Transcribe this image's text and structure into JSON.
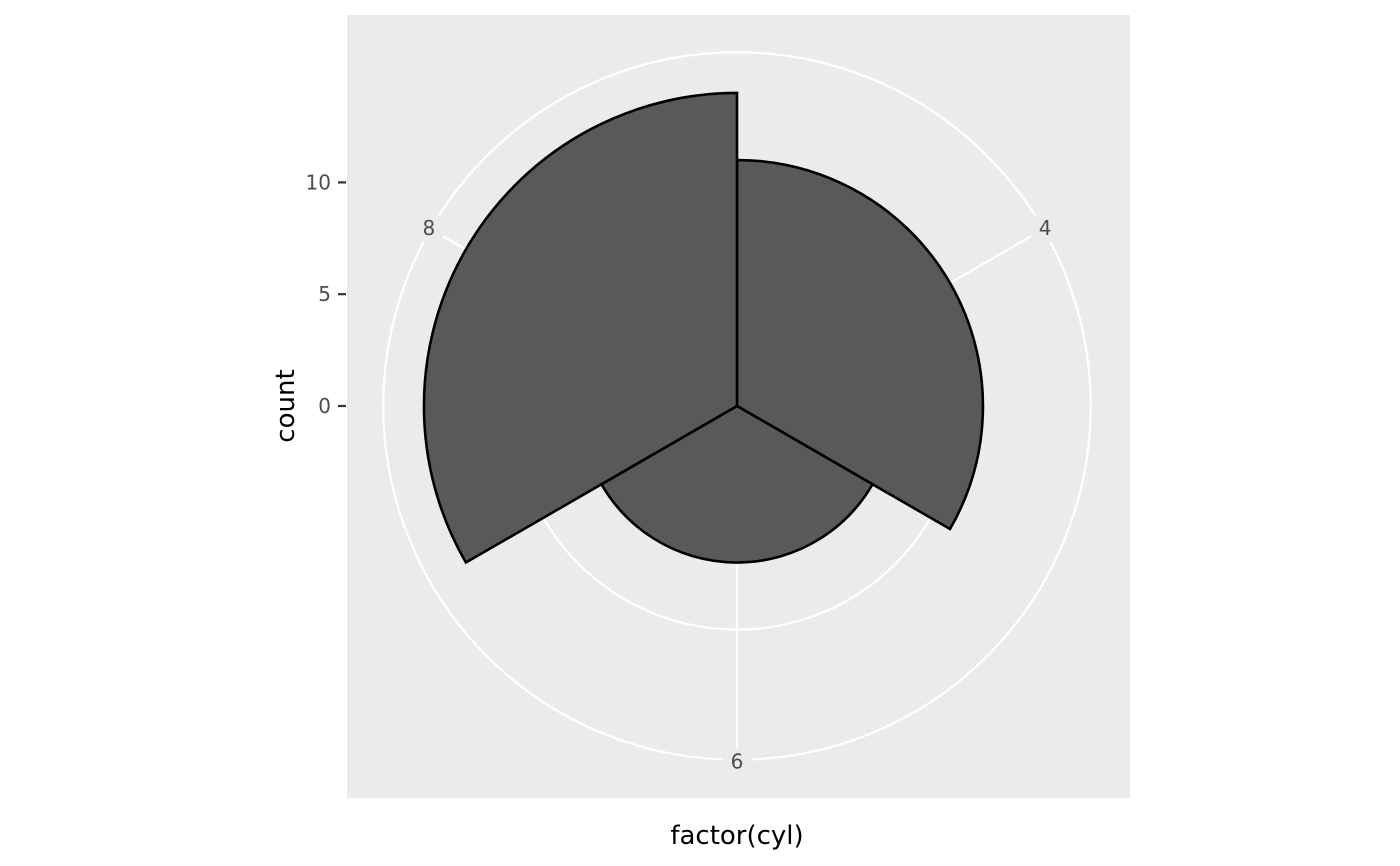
{
  "chart_data": {
    "type": "bar",
    "coord": "polar",
    "categories": [
      "4",
      "6",
      "8"
    ],
    "values": [
      11,
      7,
      14
    ],
    "xlabel": "factor(cyl)",
    "ylabel": "count",
    "y_ticks": [
      "0",
      "5",
      "10"
    ],
    "y_tick_values": [
      0,
      5,
      10
    ],
    "grid": true,
    "colors": {
      "panel": "#ebebeb",
      "grid": "#ffffff",
      "bar_fill": "#595959",
      "bar_stroke": "#000000",
      "text": "#4d4d4d"
    }
  }
}
